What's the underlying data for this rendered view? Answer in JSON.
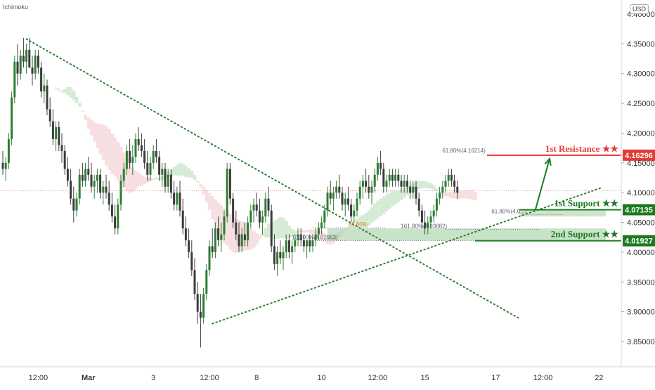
{
  "indicator": "Ichimoku",
  "currency": "USD",
  "colors": {
    "up": "#2e7d32",
    "down": "#3c3c3c",
    "resistance": "#e53935",
    "support": "#1b7a1f",
    "cloud_bull": "#c8e6c9",
    "cloud_bear": "#f4d6d8",
    "trend": "#2e7d32",
    "fib": "#5f6368",
    "fib_gold": "#d9822b"
  },
  "chart_data": {
    "type": "candlestick",
    "ylim": [
      3.8,
      4.4
    ],
    "x_ticks": [
      "12:00",
      "Mar",
      "3",
      "12:00",
      "8",
      "10",
      "12:00",
      "15",
      "17",
      "12:00",
      "22"
    ],
    "y_ticks": [
      "4.40000",
      "4.35000",
      "4.30000",
      "4.25000",
      "4.20000",
      "4.15000",
      "4.10000",
      "4.05000",
      "4.00000",
      "3.95000",
      "3.90000",
      "3.85000"
    ],
    "y_tick_values": [
      4.4,
      4.35,
      4.3,
      4.25,
      4.2,
      4.15,
      4.1,
      4.05,
      4.0,
      3.95,
      3.9,
      3.85
    ],
    "levels": [
      {
        "name": "1st Resistance ★★",
        "value": 4.16296,
        "label": "4.16296",
        "kind": "resistance"
      },
      {
        "name": "1st Support ★★",
        "value": 4.07135,
        "label": "4.07135",
        "kind": "support"
      },
      {
        "name": "2nd Support ★★",
        "value": 4.01927,
        "label": "4.01927",
        "kind": "support"
      }
    ],
    "fib_labels": [
      {
        "text": "61.80%(4.16214)",
        "bar": 164,
        "price": 4.165,
        "color": "fib"
      },
      {
        "text": "61.80%",
        "bar": 124,
        "price": 4.041,
        "color": "fib_gold"
      },
      {
        "text": "161.80%(4.03882)",
        "bar": 151,
        "price": 4.038,
        "color": "fib"
      },
      {
        "text": "100.00%(4.01953)",
        "bar": 114,
        "price": 4.0195,
        "color": "fib"
      },
      {
        "text": "61.80%(4.0...)",
        "bar": 178,
        "price": 4.063,
        "color": "fib"
      }
    ],
    "candles": [
      [
        4.15,
        4.17,
        4.13,
        4.14
      ],
      [
        4.14,
        4.16,
        4.12,
        4.15
      ],
      [
        4.15,
        4.2,
        4.14,
        4.19
      ],
      [
        4.19,
        4.27,
        4.18,
        4.26
      ],
      [
        4.26,
        4.33,
        4.25,
        4.32
      ],
      [
        4.32,
        4.35,
        4.28,
        4.3
      ],
      [
        4.3,
        4.34,
        4.29,
        4.33
      ],
      [
        4.33,
        4.36,
        4.31,
        4.32
      ],
      [
        4.32,
        4.35,
        4.3,
        4.34
      ],
      [
        4.34,
        4.36,
        4.31,
        4.31
      ],
      [
        4.31,
        4.33,
        4.28,
        4.3
      ],
      [
        4.3,
        4.34,
        4.29,
        4.33
      ],
      [
        4.33,
        4.34,
        4.3,
        4.31
      ],
      [
        4.31,
        4.32,
        4.26,
        4.27
      ],
      [
        4.27,
        4.3,
        4.25,
        4.28
      ],
      [
        4.28,
        4.29,
        4.23,
        4.24
      ],
      [
        4.24,
        4.26,
        4.21,
        4.22
      ],
      [
        4.22,
        4.24,
        4.18,
        4.19
      ],
      [
        4.19,
        4.22,
        4.17,
        4.21
      ],
      [
        4.21,
        4.22,
        4.17,
        4.18
      ],
      [
        4.18,
        4.2,
        4.15,
        4.17
      ],
      [
        4.17,
        4.18,
        4.13,
        4.14
      ],
      [
        4.14,
        4.16,
        4.11,
        4.12
      ],
      [
        4.12,
        4.14,
        4.08,
        4.09
      ],
      [
        4.09,
        4.11,
        4.05,
        4.07
      ],
      [
        4.07,
        4.1,
        4.06,
        4.09
      ],
      [
        4.09,
        4.14,
        4.08,
        4.13
      ],
      [
        4.13,
        4.15,
        4.11,
        4.12
      ],
      [
        4.12,
        4.15,
        4.11,
        4.14
      ],
      [
        4.14,
        4.16,
        4.12,
        4.13
      ],
      [
        4.13,
        4.15,
        4.1,
        4.11
      ],
      [
        4.11,
        4.13,
        4.09,
        4.12
      ],
      [
        4.12,
        4.14,
        4.1,
        4.13
      ],
      [
        4.13,
        4.14,
        4.09,
        4.1
      ],
      [
        4.1,
        4.12,
        4.08,
        4.11
      ],
      [
        4.11,
        4.13,
        4.09,
        4.1
      ],
      [
        4.1,
        4.12,
        4.07,
        4.08
      ],
      [
        4.08,
        4.1,
        4.05,
        4.06
      ],
      [
        4.06,
        4.08,
        4.03,
        4.04
      ],
      [
        4.04,
        4.09,
        4.03,
        4.08
      ],
      [
        4.08,
        4.13,
        4.07,
        4.12
      ],
      [
        4.12,
        4.15,
        4.11,
        4.14
      ],
      [
        4.14,
        4.18,
        4.13,
        4.17
      ],
      [
        4.17,
        4.19,
        4.14,
        4.15
      ],
      [
        4.15,
        4.18,
        4.13,
        4.16
      ],
      [
        4.16,
        4.2,
        4.15,
        4.19
      ],
      [
        4.19,
        4.21,
        4.17,
        4.18
      ],
      [
        4.18,
        4.2,
        4.16,
        4.17
      ],
      [
        4.17,
        4.19,
        4.14,
        4.15
      ],
      [
        4.15,
        4.17,
        4.12,
        4.13
      ],
      [
        4.13,
        4.16,
        4.12,
        4.15
      ],
      [
        4.15,
        4.18,
        4.14,
        4.17
      ],
      [
        4.17,
        4.19,
        4.15,
        4.16
      ],
      [
        4.16,
        4.17,
        4.12,
        4.13
      ],
      [
        4.13,
        4.15,
        4.11,
        4.14
      ],
      [
        4.14,
        4.15,
        4.1,
        4.11
      ],
      [
        4.11,
        4.14,
        4.1,
        4.13
      ],
      [
        4.13,
        4.14,
        4.09,
        4.1
      ],
      [
        4.1,
        4.12,
        4.07,
        4.08
      ],
      [
        4.08,
        4.11,
        4.07,
        4.1
      ],
      [
        4.1,
        4.12,
        4.06,
        4.07
      ],
      [
        4.07,
        4.09,
        4.03,
        4.04
      ],
      [
        4.04,
        4.06,
        4.01,
        4.02
      ],
      [
        4.02,
        4.04,
        3.99,
        4.0
      ],
      [
        4.0,
        4.02,
        3.96,
        3.97
      ],
      [
        3.97,
        3.99,
        3.92,
        3.93
      ],
      [
        3.93,
        3.95,
        3.88,
        3.9
      ],
      [
        3.9,
        3.93,
        3.84,
        3.89
      ],
      [
        3.89,
        3.94,
        3.88,
        3.93
      ],
      [
        3.93,
        3.98,
        3.92,
        3.97
      ],
      [
        3.97,
        4.02,
        3.96,
        4.01
      ],
      [
        4.01,
        4.04,
        3.99,
        4.0
      ],
      [
        4.0,
        4.05,
        3.99,
        4.04
      ],
      [
        4.04,
        4.06,
        4.01,
        4.02
      ],
      [
        4.02,
        4.05,
        4.0,
        4.03
      ],
      [
        4.03,
        4.07,
        4.02,
        4.06
      ],
      [
        4.06,
        4.15,
        4.05,
        4.14
      ],
      [
        4.14,
        4.15,
        4.08,
        4.09
      ],
      [
        4.09,
        4.1,
        4.04,
        4.05
      ],
      [
        4.05,
        4.07,
        4.02,
        4.03
      ],
      [
        4.03,
        4.05,
        4.0,
        4.01
      ],
      [
        4.01,
        4.04,
        4.0,
        4.03
      ],
      [
        4.03,
        4.05,
        4.01,
        4.02
      ],
      [
        4.02,
        4.06,
        4.01,
        4.05
      ],
      [
        4.05,
        4.08,
        4.04,
        4.07
      ],
      [
        4.07,
        4.09,
        4.05,
        4.08
      ],
      [
        4.08,
        4.1,
        4.06,
        4.07
      ],
      [
        4.07,
        4.09,
        4.04,
        4.05
      ],
      [
        4.05,
        4.07,
        4.03,
        4.06
      ],
      [
        4.06,
        4.1,
        4.05,
        4.09
      ],
      [
        4.09,
        4.11,
        4.06,
        4.07
      ],
      [
        4.07,
        4.08,
        4.0,
        4.01
      ],
      [
        4.01,
        4.03,
        3.97,
        3.98
      ],
      [
        3.98,
        4.01,
        3.96,
        4.0
      ],
      [
        4.0,
        4.02,
        3.98,
        3.99
      ],
      [
        3.99,
        4.01,
        3.97,
        4.0
      ],
      [
        4.0,
        4.03,
        3.99,
        4.02
      ],
      [
        4.02,
        4.03,
        3.99,
        4.0
      ],
      [
        4.0,
        4.02,
        3.98,
        4.01
      ],
      [
        4.01,
        4.03,
        4.0,
        4.02
      ],
      [
        4.02,
        4.04,
        4.01,
        4.03
      ],
      [
        4.03,
        4.04,
        4.01,
        4.02
      ],
      [
        4.02,
        4.03,
        4.0,
        4.01
      ],
      [
        4.01,
        4.02,
        3.99,
        4.02
      ],
      [
        4.02,
        4.03,
        4.0,
        4.01
      ],
      [
        4.01,
        4.03,
        4.0,
        4.02
      ],
      [
        4.02,
        4.04,
        4.01,
        4.03
      ],
      [
        4.03,
        4.05,
        4.02,
        4.04
      ],
      [
        4.04,
        4.06,
        4.03,
        4.05
      ],
      [
        4.05,
        4.08,
        4.04,
        4.07
      ],
      [
        4.07,
        4.11,
        4.06,
        4.1
      ],
      [
        4.1,
        4.12,
        4.08,
        4.09
      ],
      [
        4.09,
        4.11,
        4.07,
        4.1
      ],
      [
        4.1,
        4.12,
        4.09,
        4.11
      ],
      [
        4.11,
        4.13,
        4.09,
        4.1
      ],
      [
        4.1,
        4.11,
        4.07,
        4.08
      ],
      [
        4.08,
        4.1,
        4.06,
        4.09
      ],
      [
        4.09,
        4.11,
        4.07,
        4.08
      ],
      [
        4.08,
        4.09,
        4.05,
        4.06
      ],
      [
        4.06,
        4.08,
        4.05,
        4.07
      ],
      [
        4.07,
        4.1,
        4.06,
        4.09
      ],
      [
        4.09,
        4.12,
        4.08,
        4.11
      ],
      [
        4.11,
        4.13,
        4.09,
        4.12
      ],
      [
        4.12,
        4.14,
        4.1,
        4.11
      ],
      [
        4.11,
        4.13,
        4.09,
        4.1
      ],
      [
        4.1,
        4.12,
        4.08,
        4.11
      ],
      [
        4.11,
        4.14,
        4.1,
        4.13
      ],
      [
        4.13,
        4.16,
        4.12,
        4.15
      ],
      [
        4.15,
        4.17,
        4.13,
        4.14
      ],
      [
        4.14,
        4.15,
        4.1,
        4.11
      ],
      [
        4.11,
        4.13,
        4.1,
        4.12
      ],
      [
        4.12,
        4.14,
        4.11,
        4.13
      ],
      [
        4.13,
        4.14,
        4.11,
        4.12
      ],
      [
        4.12,
        4.14,
        4.11,
        4.13
      ],
      [
        4.13,
        4.14,
        4.11,
        4.12
      ],
      [
        4.12,
        4.13,
        4.1,
        4.11
      ],
      [
        4.11,
        4.13,
        4.1,
        4.12
      ],
      [
        4.12,
        4.13,
        4.1,
        4.11
      ],
      [
        4.11,
        4.12,
        4.09,
        4.1
      ],
      [
        4.1,
        4.12,
        4.09,
        4.11
      ],
      [
        4.11,
        4.12,
        4.08,
        4.09
      ],
      [
        4.09,
        4.1,
        4.06,
        4.07
      ],
      [
        4.07,
        4.08,
        4.04,
        4.05
      ],
      [
        4.05,
        4.07,
        4.03,
        4.04
      ],
      [
        4.04,
        4.06,
        4.03,
        4.05
      ],
      [
        4.05,
        4.07,
        4.04,
        4.06
      ],
      [
        4.06,
        4.08,
        4.05,
        4.07
      ],
      [
        4.07,
        4.1,
        4.06,
        4.09
      ],
      [
        4.09,
        4.11,
        4.08,
        4.1
      ],
      [
        4.1,
        4.12,
        4.09,
        4.11
      ],
      [
        4.11,
        4.13,
        4.1,
        4.12
      ],
      [
        4.12,
        4.14,
        4.11,
        4.13
      ],
      [
        4.13,
        4.14,
        4.11,
        4.12
      ],
      [
        4.12,
        4.13,
        4.1,
        4.11
      ],
      [
        4.11,
        4.12,
        4.09,
        4.1
      ]
    ]
  }
}
